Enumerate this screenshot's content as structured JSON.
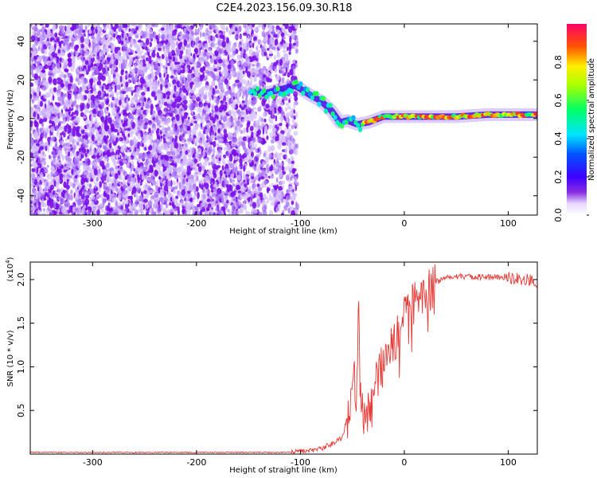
{
  "title": "C2E4.2023.156.09.30.R18",
  "colors": {
    "snr_line": "#e53935",
    "scatter_low": "#c9a8ff",
    "scatter_high": "#6a00e0"
  },
  "chart_data": [
    {
      "type": "heatmap",
      "xlabel": "Height of straight line (km)",
      "ylabel": "Frequency (Hz)",
      "xlim": [
        -360,
        128
      ],
      "ylim": [
        -50,
        49
      ],
      "xticks": [
        -300,
        -200,
        -100,
        0,
        100
      ],
      "yticks": [
        -40,
        -20,
        0,
        20,
        40
      ],
      "colorbar": {
        "label": "Normalized spectral amplitude",
        "range": [
          0.0,
          1.0
        ],
        "ticks": [
          0.0,
          0.2,
          0.4,
          0.6,
          0.8
        ],
        "colormap": "rainbow (violet to red)"
      },
      "regions": [
        {
          "x_range": [
            -360,
            -150
          ],
          "f_range": [
            -50,
            49
          ],
          "amplitude": 0.05,
          "kind": "broadband noise"
        },
        {
          "x_range": [
            -150,
            -103
          ],
          "f_range": [
            -50,
            49
          ],
          "amplitude": 0.04,
          "kind": "sparse noise"
        }
      ],
      "signal_trace": [
        {
          "x": -148,
          "f": 14
        },
        {
          "x": -135,
          "f": 13
        },
        {
          "x": -120,
          "f": 15
        },
        {
          "x": -105,
          "f": 17
        },
        {
          "x": -90,
          "f": 12
        },
        {
          "x": -80,
          "f": 9
        },
        {
          "x": -70,
          "f": 4
        },
        {
          "x": -62,
          "f": -2
        },
        {
          "x": -55,
          "f": -1
        },
        {
          "x": -45,
          "f": -3
        },
        {
          "x": -35,
          "f": -2
        },
        {
          "x": -20,
          "f": 1
        },
        {
          "x": 0,
          "f": 1
        },
        {
          "x": 20,
          "f": 1
        },
        {
          "x": 50,
          "f": 1
        },
        {
          "x": 80,
          "f": 2
        },
        {
          "x": 110,
          "f": 2
        },
        {
          "x": 128,
          "f": 2
        }
      ]
    },
    {
      "type": "line",
      "xlabel": "Height of straight line (km)",
      "ylabel": "SNR (10 * v/v)",
      "y_multiplier": "(x10",
      "y_multiplier_exp": "4",
      "y_multiplier_close": ")",
      "xlim": [
        -360,
        128
      ],
      "ylim": [
        0,
        2.2
      ],
      "xticks": [
        -300,
        -200,
        -100,
        0,
        100
      ],
      "yticks": [
        0.5,
        1.0,
        1.5,
        2.0
      ],
      "series": [
        {
          "x": [
            -360,
            -300,
            -200,
            -120,
            -100,
            -80,
            -60,
            -52,
            -48,
            -46,
            -44,
            -42,
            -40,
            -35,
            -30,
            -25,
            -20,
            -15,
            -10,
            -5,
            0,
            5,
            10,
            15,
            20,
            25,
            30,
            40,
            50,
            60,
            80,
            100,
            110,
            120,
            128
          ],
          "y": [
            0.02,
            0.02,
            0.02,
            0.02,
            0.03,
            0.06,
            0.18,
            0.55,
            1.2,
            0.4,
            1.85,
            0.8,
            0.45,
            0.5,
            0.7,
            0.9,
            1.05,
            1.15,
            1.3,
            1.45,
            1.6,
            1.65,
            1.7,
            1.75,
            1.8,
            1.9,
            1.97,
            2.03,
            2.04,
            2.03,
            2.03,
            2.02,
            2.01,
            2.0,
            1.96
          ]
        }
      ]
    }
  ]
}
